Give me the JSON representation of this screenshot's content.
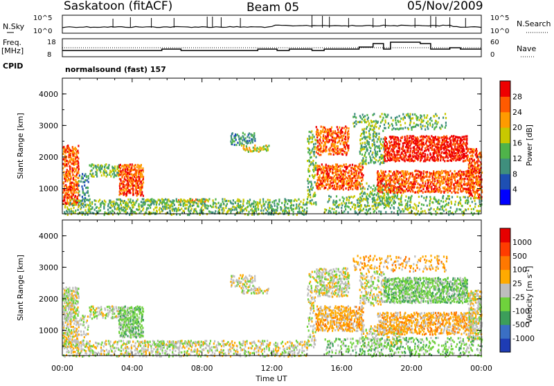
{
  "header": {
    "station": "Saskatoon (fitACF)",
    "beam": "Beam 05",
    "date": "05/Nov/2009"
  },
  "top_panels": {
    "nsky_label": "N.Sky",
    "nsky_ticks": [
      "10^5",
      "10^0"
    ],
    "nsearch_label": "N.Search",
    "nsearch_ticks": [
      "10^5",
      "10^0"
    ],
    "freq_label_1": "Freq.",
    "freq_label_2": "[MHz]",
    "freq_ticks": [
      "18",
      "8"
    ],
    "nave_label": "Nave",
    "nave_ticks": [
      "60",
      "0"
    ],
    "cpid_label": "CPID",
    "cpid_value": "normalsound (fast) 157"
  },
  "chart_data": [
    {
      "type": "heatmap",
      "name": "power-panel",
      "ylabel": "Slant Range [km]",
      "yticks": [
        "1000",
        "2000",
        "3000",
        "4000"
      ],
      "ylim": [
        200,
        4500
      ],
      "xlim": [
        0,
        24
      ],
      "colorbar_label": "Power [dB]",
      "colorbar_ticks": [
        "4",
        "8",
        "12",
        "16",
        "20",
        "24",
        "28"
      ],
      "colors": [
        "#0000ff",
        "#1e4fb3",
        "#3f8f7d",
        "#4fb34a",
        "#c8c800",
        "#ff9b00",
        "#ff5a00",
        "#ee0000"
      ]
    },
    {
      "type": "heatmap",
      "name": "velocity-panel",
      "ylabel": "Slant Range [km]",
      "yticks": [
        "1000",
        "2000",
        "3000",
        "4000"
      ],
      "ylim": [
        200,
        4500
      ],
      "xlim": [
        0,
        24
      ],
      "colorbar_label": "Velocity [m s",
      "colorbar_label_sup": "-1",
      "colorbar_label_end": "]",
      "colorbar_ticks": [
        "1000",
        "500",
        "100",
        "25",
        "-25",
        "-100",
        "-500",
        "-1000"
      ],
      "colors": [
        "#1e3cb4",
        "#3a6fc4",
        "#3c9e5a",
        "#6fd23c",
        "#bebebe",
        "#ffaa00",
        "#ff7800",
        "#ff3c00",
        "#e60000"
      ]
    }
  ],
  "xaxis": {
    "ticks": [
      "00:00",
      "04:00",
      "08:00",
      "12:00",
      "16:00",
      "20:00",
      "00:00"
    ],
    "label": "Time UT"
  }
}
